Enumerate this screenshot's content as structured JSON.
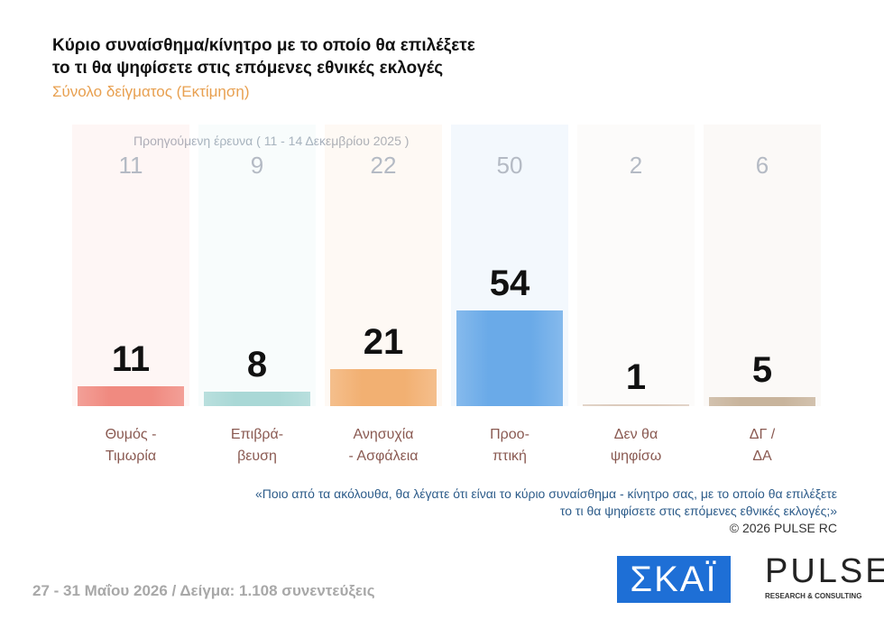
{
  "chart_data": {
    "type": "bar",
    "title": "Κύριο συναίσθημα/κίνητρο με το οποίο θα επιλέξετε\nτο τι θα ψηφίσετε στις επόμενες εθνικές εκλογές",
    "subtitle": "Σύνολο δείγματος (Εκτίμηση)",
    "categories": [
      "Θυμός -\nΤιμωρία",
      "Επιβρά-\nβευση",
      "Ανησυχία\n- Ασφάλεια",
      "Προο-\nπτική",
      "Δεν θα\nψηφίσω",
      "ΔΓ /\nΔΑ"
    ],
    "values": [
      11,
      8,
      21,
      54,
      1,
      5
    ],
    "colors": [
      "#f08a80",
      "#a9d8d6",
      "#f2b072",
      "#6aaae8",
      "#dccbbd",
      "#c8b49c"
    ],
    "previous": {
      "label": "Προηγούμενη έρευνα ( 11 - 14 Δεκεμβρίου 2025 )",
      "values": [
        11,
        9,
        22,
        50,
        2,
        6
      ]
    }
  },
  "footer": {
    "question": "«Ποιο από τα ακόλουθα, θα λέγατε ότι είναι το κύριο συναίσθημα - κίνητρο σας, με το οποίο θα επιλέξετε\nτο τι θα ψηφίσετε στις επόμενες εθνικές εκλογές;»",
    "copyright": "©  2026  PULSE RC",
    "survey": "27 - 31  Μαΐου 2026  /  Δείγμα:  1.108 συνεντεύξεις"
  },
  "logos": [
    "ΣΚΑΪ",
    "PULSE",
    "RESEARCH & CONSULTING"
  ]
}
